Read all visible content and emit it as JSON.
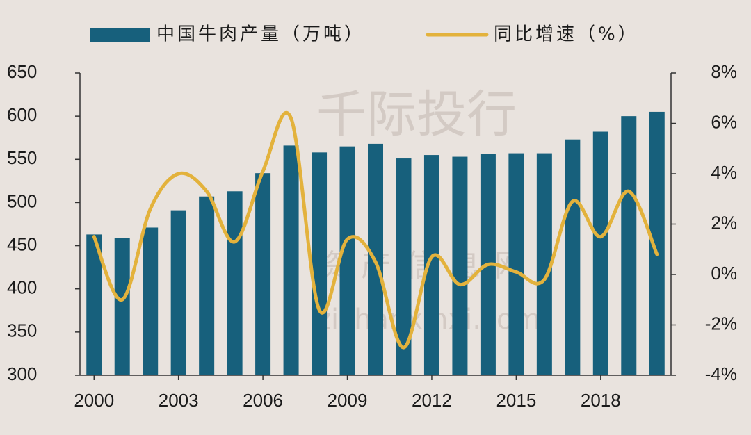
{
  "chart_data": {
    "type": "bar_line",
    "legend_position": "top",
    "categories": [
      "2000",
      null,
      null,
      "2003",
      null,
      null,
      "2006",
      null,
      null,
      "2009",
      null,
      null,
      "2012",
      null,
      null,
      "2015",
      null,
      null,
      "2018",
      null,
      null
    ],
    "series": [
      {
        "name": "中国牛肉产量（万吨）",
        "type": "bar",
        "color": "#17607c",
        "values": [
          463,
          459,
          471,
          491,
          507,
          513,
          534,
          566,
          558,
          565,
          568,
          551,
          555,
          553,
          556,
          557,
          557,
          573,
          582,
          600,
          605
        ]
      },
      {
        "name": "同比增速（%）",
        "type": "line",
        "axis": "y2",
        "color": "#e3b23c",
        "values": [
          1.5,
          -1.0,
          2.6,
          4.0,
          3.3,
          1.3,
          4.1,
          6.2,
          -1.4,
          1.4,
          0.5,
          -2.9,
          0.7,
          -0.4,
          0.4,
          0.1,
          -0.2,
          2.9,
          1.5,
          3.3,
          0.8
        ]
      }
    ],
    "ylim": [
      300,
      650
    ],
    "yticks": [
      300,
      350,
      400,
      450,
      500,
      550,
      600,
      650
    ],
    "y2lim": [
      -4,
      8
    ],
    "y2ticks": [
      {
        "value": -4,
        "label": "-4%"
      },
      {
        "value": -2,
        "label": "-2%"
      },
      {
        "value": 0,
        "label": "0%"
      },
      {
        "value": 2,
        "label": "2%"
      },
      {
        "value": 4,
        "label": "4%"
      },
      {
        "value": 6,
        "label": "6%"
      },
      {
        "value": 8,
        "label": "8%"
      }
    ],
    "watermarks": [
      "千际投行",
      "资产信息网",
      "zichanxinxi.com"
    ]
  }
}
